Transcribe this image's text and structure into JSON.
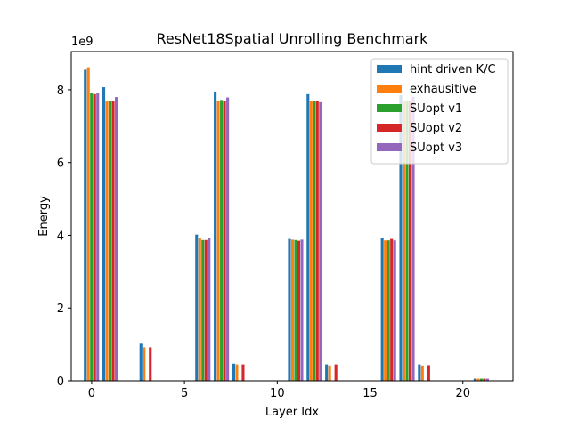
{
  "chart_data": {
    "type": "bar",
    "title": "ResNet18Spatial Unrolling Benchmark",
    "xlabel": "Layer Idx",
    "ylabel": "Energy",
    "y_scale_label": "1e9",
    "y_multiplier": 1000000000,
    "xlim": [
      -1.1,
      22.7
    ],
    "ylim": [
      0,
      9.05
    ],
    "xticks": [
      0,
      5,
      10,
      15,
      20
    ],
    "yticks": [
      0,
      2,
      4,
      6,
      8
    ],
    "grid": false,
    "legend_position": "top-right",
    "x": [
      0,
      1,
      3,
      6,
      7,
      8,
      11,
      12,
      13,
      16,
      17,
      18,
      21
    ],
    "series": [
      {
        "name": "hint driven K/C",
        "color": "#1f77b4",
        "values": [
          8.55,
          8.07,
          1.02,
          4.02,
          7.95,
          0.47,
          3.9,
          7.88,
          0.45,
          3.93,
          7.85,
          0.45,
          0.06
        ]
      },
      {
        "name": "exhausitive",
        "color": "#ff7f0e",
        "values": [
          8.62,
          7.68,
          0.92,
          3.92,
          7.7,
          0.45,
          3.88,
          7.68,
          0.42,
          3.86,
          7.7,
          0.42,
          0.06
        ]
      },
      {
        "name": "SUopt v1",
        "color": "#2ca02c",
        "values": [
          7.92,
          7.7,
          0.0,
          3.87,
          7.72,
          0.0,
          3.87,
          7.68,
          0.0,
          3.86,
          7.68,
          0.0,
          0.06
        ]
      },
      {
        "name": "SUopt v2",
        "color": "#d62728",
        "values": [
          7.88,
          7.7,
          0.92,
          3.87,
          7.7,
          0.45,
          3.85,
          7.7,
          0.45,
          3.9,
          7.7,
          0.43,
          0.06
        ]
      },
      {
        "name": "SUopt v3",
        "color": "#9467bd",
        "values": [
          7.9,
          7.8,
          0.0,
          3.92,
          7.79,
          0.0,
          3.88,
          7.66,
          0.0,
          3.86,
          7.81,
          0.0,
          0.06
        ]
      }
    ]
  }
}
